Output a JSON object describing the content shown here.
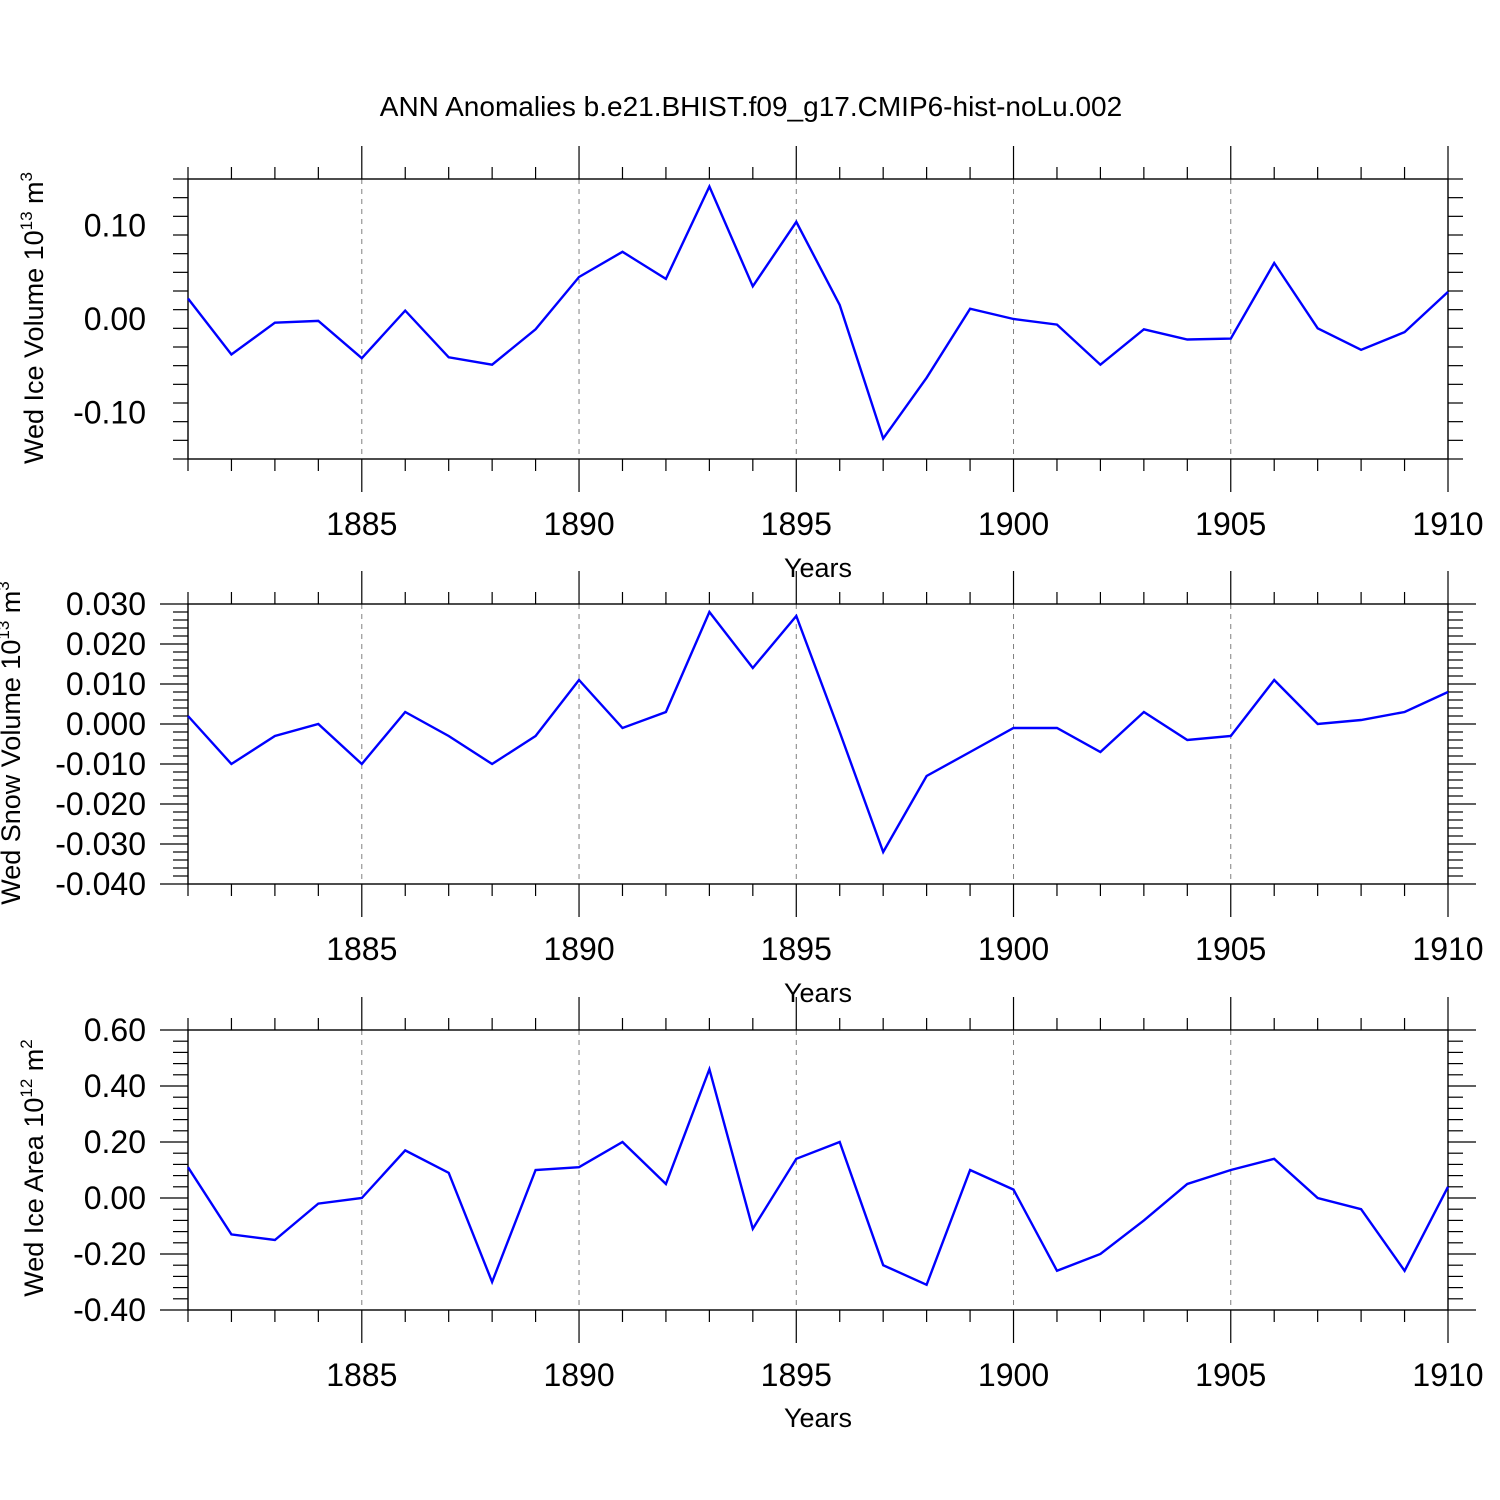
{
  "title": "ANN Anomalies b.e21.BHIST.f09_g17.CMIP6-hist-noLu.002",
  "colors": {
    "line": "#0000ff",
    "axis": "#000000",
    "grid": "#808080"
  },
  "chart_data": [
    {
      "type": "line",
      "series_name": "Wed Ice Volume",
      "ylabel_text": "Wed Ice Volume 10",
      "ylabel_exp": "13",
      "ylabel_unit": "m",
      "ylabel_unit_exp": "3",
      "xlabel": "Years",
      "xlim": [
        1881,
        1910
      ],
      "ylim": [
        -0.15,
        0.15
      ],
      "xticks": [
        1885,
        1890,
        1895,
        1900,
        1905,
        1910
      ],
      "xtick_labels": [
        "1885",
        "1890",
        "1895",
        "1900",
        "1905",
        "1910"
      ],
      "yticks": [
        -0.1,
        0.0,
        0.1
      ],
      "ytick_labels": [
        "-0.10",
        "0.00",
        "0.10"
      ],
      "y_minor_step": 0.02,
      "x": [
        1881,
        1882,
        1883,
        1884,
        1885,
        1886,
        1887,
        1888,
        1889,
        1890,
        1891,
        1892,
        1893,
        1894,
        1895,
        1896,
        1897,
        1898,
        1899,
        1900,
        1901,
        1902,
        1903,
        1904,
        1905,
        1906,
        1907,
        1908,
        1909,
        1910
      ],
      "values": [
        0.022,
        -0.038,
        -0.004,
        -0.002,
        -0.042,
        0.009,
        -0.041,
        -0.049,
        -0.011,
        0.045,
        0.072,
        0.043,
        0.142,
        0.035,
        0.104,
        0.015,
        -0.128,
        -0.063,
        0.011,
        0.0,
        -0.006,
        -0.049,
        -0.011,
        -0.022,
        -0.021,
        0.06,
        -0.01,
        -0.033,
        -0.014,
        0.029
      ]
    },
    {
      "type": "line",
      "series_name": "Wed Snow Volume",
      "ylabel_text": "Wed Snow Volume 10",
      "ylabel_exp": "13",
      "ylabel_unit": "m",
      "ylabel_unit_exp": "3",
      "xlabel": "Years",
      "xlim": [
        1881,
        1910
      ],
      "ylim": [
        -0.04,
        0.03
      ],
      "xticks": [
        1885,
        1890,
        1895,
        1900,
        1905,
        1910
      ],
      "xtick_labels": [
        "1885",
        "1890",
        "1895",
        "1900",
        "1905",
        "1910"
      ],
      "yticks": [
        -0.04,
        -0.03,
        -0.02,
        -0.01,
        0.0,
        0.01,
        0.02,
        0.03
      ],
      "ytick_labels": [
        "-0.040",
        "-0.030",
        "-0.020",
        "-0.010",
        "0.000",
        "0.010",
        "0.020",
        "0.030"
      ],
      "y_minor_step": 0.002,
      "x": [
        1881,
        1882,
        1883,
        1884,
        1885,
        1886,
        1887,
        1888,
        1889,
        1890,
        1891,
        1892,
        1893,
        1894,
        1895,
        1896,
        1897,
        1898,
        1899,
        1900,
        1901,
        1902,
        1903,
        1904,
        1905,
        1906,
        1907,
        1908,
        1909,
        1910
      ],
      "values": [
        0.002,
        -0.01,
        -0.003,
        0.0,
        -0.01,
        0.003,
        -0.003,
        -0.01,
        -0.003,
        0.011,
        -0.001,
        0.003,
        0.028,
        0.014,
        0.027,
        -0.002,
        -0.032,
        -0.013,
        -0.007,
        -0.001,
        -0.001,
        -0.007,
        0.003,
        -0.004,
        -0.003,
        0.011,
        0.0,
        0.001,
        0.003,
        0.008
      ]
    },
    {
      "type": "line",
      "series_name": "Wed Ice Area",
      "ylabel_text": "Wed Ice Area 10",
      "ylabel_exp": "12",
      "ylabel_unit": "m",
      "ylabel_unit_exp": "2",
      "xlabel": "Years",
      "xlim": [
        1881,
        1910
      ],
      "ylim": [
        -0.4,
        0.6
      ],
      "xticks": [
        1885,
        1890,
        1895,
        1900,
        1905,
        1910
      ],
      "xtick_labels": [
        "1885",
        "1890",
        "1895",
        "1900",
        "1905",
        "1910"
      ],
      "yticks": [
        -0.4,
        -0.2,
        0.0,
        0.2,
        0.4,
        0.6
      ],
      "ytick_labels": [
        "-0.40",
        "-0.20",
        "0.00",
        "0.20",
        "0.40",
        "0.60"
      ],
      "y_minor_step": 0.04,
      "x": [
        1881,
        1882,
        1883,
        1884,
        1885,
        1886,
        1887,
        1888,
        1889,
        1890,
        1891,
        1892,
        1893,
        1894,
        1895,
        1896,
        1897,
        1898,
        1899,
        1900,
        1901,
        1902,
        1903,
        1904,
        1905,
        1906,
        1907,
        1908,
        1909,
        1910
      ],
      "values": [
        0.11,
        -0.13,
        -0.15,
        -0.02,
        0.0,
        0.17,
        0.09,
        -0.3,
        0.1,
        0.11,
        0.2,
        0.05,
        0.46,
        -0.11,
        0.14,
        0.2,
        -0.24,
        -0.31,
        0.1,
        0.03,
        -0.26,
        -0.2,
        -0.08,
        0.05,
        0.1,
        0.14,
        0.0,
        -0.04,
        -0.26,
        0.04
      ]
    }
  ]
}
